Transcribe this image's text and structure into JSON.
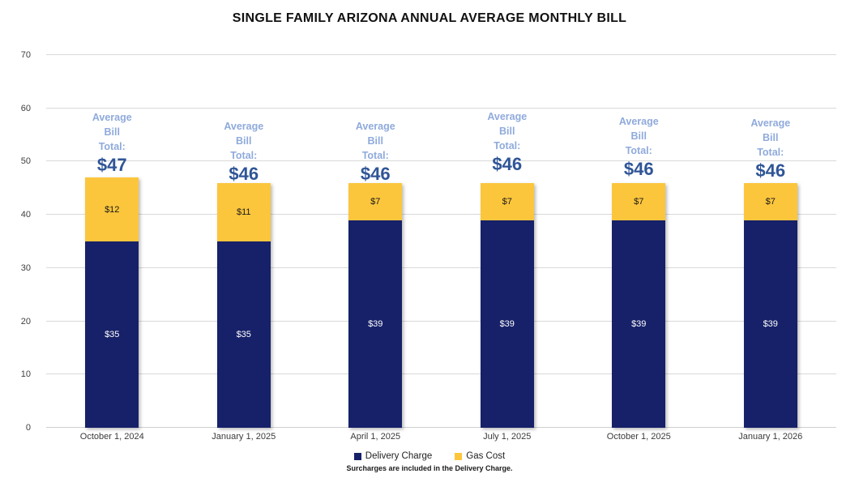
{
  "title": "SINGLE FAMILY ARIZONA ANNUAL AVERAGE MONTHLY BILL",
  "colors": {
    "delivery_charge": "#172169",
    "gas_cost": "#FCC63C",
    "average_label": "#8FAADC",
    "average_total": "#2F5597",
    "gridline": "#D9D9D9"
  },
  "chart_data": {
    "type": "bar",
    "stacked": true,
    "title": "SINGLE FAMILY ARIZONA ANNUAL AVERAGE MONTHLY BILL",
    "categories": [
      "October 1, 2024",
      "January 1, 2025",
      "April 1, 2025",
      "July 1, 2025",
      "October 1, 2025",
      "January 1, 2026"
    ],
    "series": [
      {
        "name": "Delivery Charge",
        "color": "#172169",
        "values": [
          35,
          35,
          39,
          39,
          39,
          39
        ],
        "labels": [
          "$35",
          "$35",
          "$39",
          "$39",
          "$39",
          "$39"
        ]
      },
      {
        "name": "Gas Cost",
        "color": "#FCC63C",
        "values": [
          12,
          11,
          7,
          7,
          7,
          7
        ],
        "labels": [
          "$12",
          "$11",
          "$7",
          "$7",
          "$7",
          "$7"
        ]
      }
    ],
    "totals": {
      "label_lines": [
        "Average",
        "Bill",
        "Total:"
      ],
      "values": [
        "$47",
        "$46",
        "$46",
        "$46",
        "$46",
        "$46"
      ],
      "values_numeric": [
        47,
        46,
        46,
        46,
        46,
        46
      ]
    },
    "xlabel": "",
    "ylabel": "",
    "ylim": [
      0,
      70
    ],
    "yticks": [
      0,
      10,
      20,
      30,
      40,
      50,
      60,
      70
    ],
    "grid": true,
    "legend_position": "bottom"
  },
  "footnote": "Surcharges are included in the Delivery Charge."
}
